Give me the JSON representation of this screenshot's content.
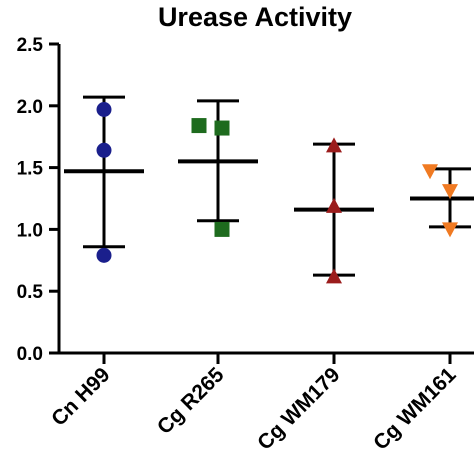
{
  "chart_data": {
    "type": "scatter",
    "title": "Urease Activity",
    "xlabel": "",
    "ylabel": "",
    "ylim": [
      0,
      2.5
    ],
    "yticks": [
      "0.0",
      "0.5",
      "1.0",
      "1.5",
      "2.0",
      "2.5"
    ],
    "grid": false,
    "categories": [
      "Cn H99",
      "Cg R265",
      "Cg WM179",
      "Cg WM161"
    ],
    "groups": [
      {
        "category": "Cn H99",
        "marker": "circle",
        "color": "#1a1f8c",
        "points": [
          1.97,
          1.64,
          0.79
        ],
        "mean": 1.47,
        "err_low": 0.86,
        "err_high": 2.07
      },
      {
        "category": "Cg R265",
        "marker": "square",
        "color": "#1e6b1e",
        "points": [
          1.84,
          1.82,
          1.0
        ],
        "mean": 1.55,
        "err_low": 1.07,
        "err_high": 2.04
      },
      {
        "category": "Cg WM179",
        "marker": "triangle-up",
        "color": "#9b1c1c",
        "points": [
          1.68,
          1.19,
          0.62
        ],
        "mean": 1.16,
        "err_low": 0.63,
        "err_high": 1.69
      },
      {
        "category": "Cg WM161",
        "marker": "triangle-down",
        "color": "#f07a22",
        "points": [
          1.47,
          1.31,
          1.0
        ],
        "mean": 1.25,
        "err_low": 1.02,
        "err_high": 1.49
      }
    ]
  }
}
